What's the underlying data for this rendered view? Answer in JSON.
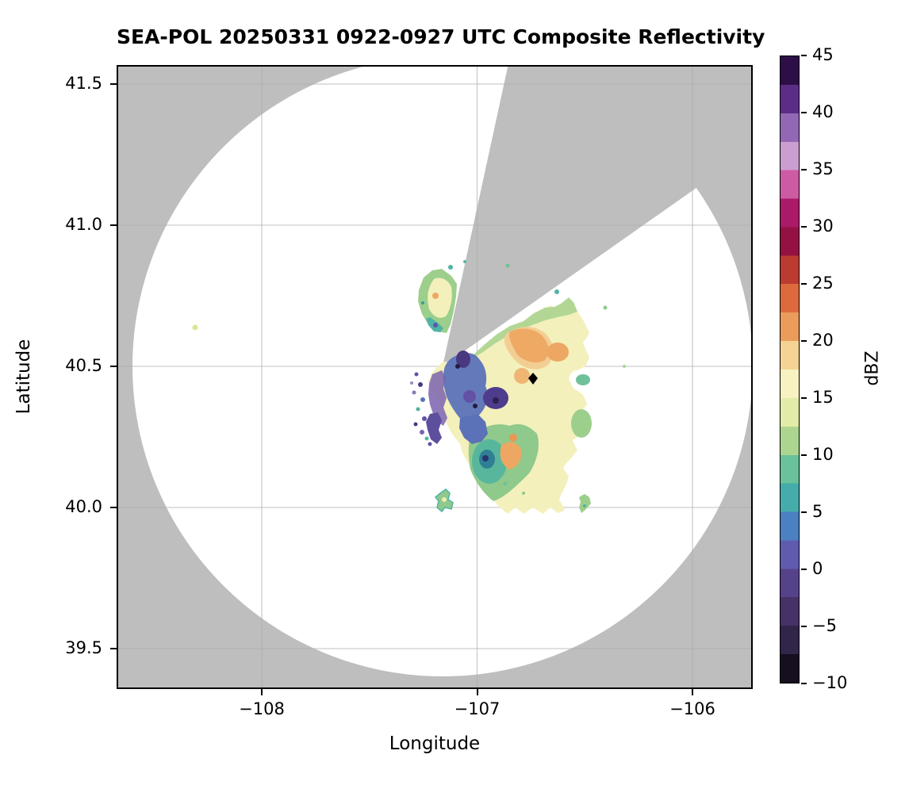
{
  "figure": {
    "title": "SEA-POL 20250331 0922-0927 UTC Composite Reflectivity",
    "background_color": "#ffffff"
  },
  "axes": {
    "xlabel": "Longitude",
    "ylabel": "Latitude",
    "x_ticks": [
      {
        "value": -108,
        "label": "−108"
      },
      {
        "value": -107,
        "label": "−107"
      },
      {
        "value": -106,
        "label": "−106"
      }
    ],
    "y_ticks": [
      {
        "value": 41.5,
        "label": "41.5"
      },
      {
        "value": 41.0,
        "label": "41.0"
      },
      {
        "value": 40.5,
        "label": "40.5"
      },
      {
        "value": 40.0,
        "label": "40.0"
      },
      {
        "value": 39.5,
        "label": "39.5"
      }
    ],
    "plot_background_color": "#BEBEBE",
    "coverage_fill_color": "#FFFFFF",
    "gridline_color": "#ABABAB",
    "border_color": "#000000"
  },
  "colorbar": {
    "label": "dBZ",
    "vmin": -10,
    "vmax": 45,
    "ticks": [
      {
        "value": 45,
        "label": "45"
      },
      {
        "value": 40,
        "label": "40"
      },
      {
        "value": 35,
        "label": "35"
      },
      {
        "value": 30,
        "label": "30"
      },
      {
        "value": 25,
        "label": "25"
      },
      {
        "value": 20,
        "label": "20"
      },
      {
        "value": 15,
        "label": "15"
      },
      {
        "value": 10,
        "label": "10"
      },
      {
        "value": 5,
        "label": "5"
      },
      {
        "value": 0,
        "label": "0"
      },
      {
        "value": -5,
        "label": "−5"
      },
      {
        "value": -10,
        "label": "−10"
      }
    ],
    "bands": [
      {
        "from": 45.0,
        "to": 42.5,
        "color": "#2E0E47"
      },
      {
        "from": 42.5,
        "to": 40.0,
        "color": "#5C2D86"
      },
      {
        "from": 40.0,
        "to": 37.5,
        "color": "#9268B5"
      },
      {
        "from": 37.5,
        "to": 35.0,
        "color": "#CB9ED1"
      },
      {
        "from": 35.0,
        "to": 32.5,
        "color": "#CD5BA4"
      },
      {
        "from": 32.5,
        "to": 30.0,
        "color": "#AB1A68"
      },
      {
        "from": 30.0,
        "to": 27.5,
        "color": "#941243"
      },
      {
        "from": 27.5,
        "to": 25.0,
        "color": "#BC3B31"
      },
      {
        "from": 25.0,
        "to": 22.5,
        "color": "#DC6A3D"
      },
      {
        "from": 22.5,
        "to": 20.0,
        "color": "#EB9C5B"
      },
      {
        "from": 20.0,
        "to": 17.5,
        "color": "#F5D395"
      },
      {
        "from": 17.5,
        "to": 15.0,
        "color": "#F8F2C2"
      },
      {
        "from": 15.0,
        "to": 12.5,
        "color": "#E2ECA6"
      },
      {
        "from": 12.5,
        "to": 10.0,
        "color": "#ACD68F"
      },
      {
        "from": 10.0,
        "to": 7.5,
        "color": "#69C29B"
      },
      {
        "from": 7.5,
        "to": 5.0,
        "color": "#45ACAB"
      },
      {
        "from": 5.0,
        "to": 2.5,
        "color": "#4B80C2"
      },
      {
        "from": 2.5,
        "to": 0.0,
        "color": "#5F5CB0"
      },
      {
        "from": 0.0,
        "to": -2.5,
        "color": "#56428B"
      },
      {
        "from": -2.5,
        "to": -5.0,
        "color": "#463267"
      },
      {
        "from": -5.0,
        "to": -7.5,
        "color": "#312549"
      },
      {
        "from": -7.5,
        "to": -10.0,
        "color": "#150F20"
      }
    ]
  },
  "chart_data": {
    "type": "heatmap",
    "subtype": "radar composite reflectivity PPI on longitude/latitude map",
    "title": "SEA-POL 20250331 0922-0927 UTC Composite Reflectivity",
    "xlabel": "Longitude",
    "ylabel": "Latitude",
    "xlim": [
      -108.67,
      -105.72
    ],
    "ylim": [
      39.29,
      41.57
    ],
    "x_tick_values": [
      -108,
      -107,
      -106
    ],
    "y_tick_values": [
      41.5,
      41.0,
      40.5,
      40.0,
      39.5
    ],
    "grid": true,
    "colorbar": {
      "label": "dBZ",
      "range": [
        -10,
        45
      ],
      "tick_step": 5,
      "style": "discrete bands ~2.5 dBZ"
    },
    "radar": {
      "longitude": -107.16,
      "latitude": 40.48,
      "coverage_radius_km": 122,
      "coverage_fill": "white (scanned, no echo)",
      "outside_coverage_fill": "grey (no data)",
      "blocked_sector_azimuth_deg": [
        12,
        55
      ],
      "blocked_sector_fill": "grey (beam blockage, no data)"
    },
    "marker": {
      "symbol": "filled-diamond",
      "color": "#000000",
      "longitude": -106.76,
      "latitude": 40.45
    },
    "echo_features": [
      {
        "name": "main-precip-shield",
        "lon_range": [
          -107.28,
          -106.42
        ],
        "lat_range": [
          39.95,
          40.73
        ],
        "typical_dbz": [
          8,
          22
        ],
        "notes": "pale-yellow 15-18 dBZ shield with orange 20-22 dBZ patches east of radar"
      },
      {
        "name": "low-dbz-core-west",
        "lon_range": [
          -107.2,
          -106.88
        ],
        "lat_range": [
          40.2,
          40.48
        ],
        "typical_dbz": [
          -5,
          5
        ],
        "notes": "dark blue/purple reflectivity minimum just south-east of radar"
      },
      {
        "name": "northwest-lobe",
        "lon_range": [
          -107.3,
          -107.08
        ],
        "lat_range": [
          40.55,
          40.78
        ],
        "typical_dbz": [
          5,
          20
        ],
        "notes": "echo lobe north of radar, west of blocked sector"
      },
      {
        "name": "isolated-cell-west",
        "lon": -108.31,
        "lat": 40.64,
        "typical_dbz": 15
      },
      {
        "name": "small-cells-south",
        "lon_range": [
          -107.07,
          -106.35
        ],
        "lat_range": [
          39.95,
          40.07
        ],
        "typical_dbz": [
          8,
          15
        ]
      }
    ]
  }
}
